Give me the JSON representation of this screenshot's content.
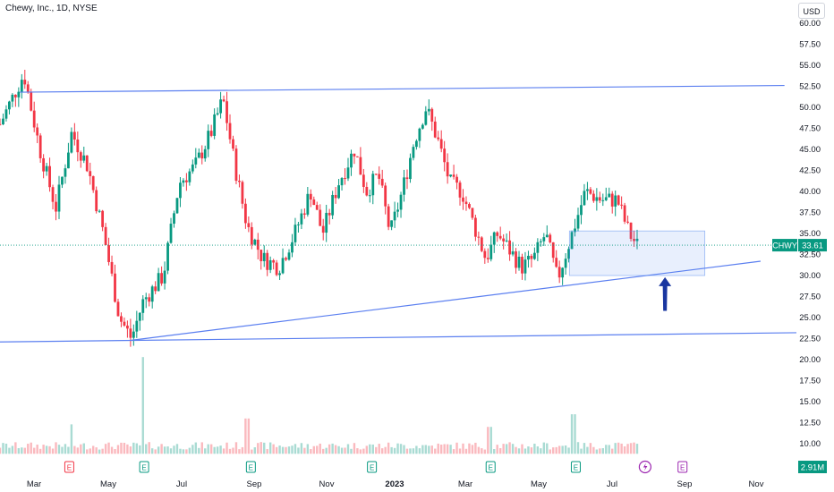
{
  "header": {
    "title": "Chewy, Inc., 1D, NYSE",
    "currency": "USD"
  },
  "chart_data": {
    "type": "candlestick",
    "symbol": "CHWY",
    "last_price": "33.61",
    "volume_label": "2.91M",
    "y_ticks": [
      "60.00",
      "57.50",
      "55.00",
      "52.50",
      "50.00",
      "47.50",
      "45.00",
      "42.50",
      "40.00",
      "37.50",
      "35.00",
      "32.50",
      "30.00",
      "27.50",
      "25.00",
      "22.50",
      "20.00",
      "17.50",
      "15.00",
      "12.50",
      "10.00"
    ],
    "x_ticks": [
      {
        "label": "Mar",
        "bold": false
      },
      {
        "label": "May",
        "bold": false
      },
      {
        "label": "Jul",
        "bold": false
      },
      {
        "label": "Sep",
        "bold": false
      },
      {
        "label": "Nov",
        "bold": false
      },
      {
        "label": "2023",
        "bold": true
      },
      {
        "label": "Mar",
        "bold": false
      },
      {
        "label": "May",
        "bold": false
      },
      {
        "label": "Jul",
        "bold": false
      },
      {
        "label": "Sep",
        "bold": false
      },
      {
        "label": "Nov",
        "bold": false
      }
    ],
    "price_path": [
      [
        0,
        48
      ],
      [
        0.03,
        54
      ],
      [
        0.05,
        45
      ],
      [
        0.07,
        38
      ],
      [
        0.09,
        47
      ],
      [
        0.11,
        43
      ],
      [
        0.13,
        35
      ],
      [
        0.15,
        25
      ],
      [
        0.165,
        22.5
      ],
      [
        0.18,
        27
      ],
      [
        0.205,
        30
      ],
      [
        0.225,
        41
      ],
      [
        0.245,
        43
      ],
      [
        0.265,
        47
      ],
      [
        0.28,
        51
      ],
      [
        0.295,
        43
      ],
      [
        0.31,
        36
      ],
      [
        0.33,
        32
      ],
      [
        0.35,
        31
      ],
      [
        0.37,
        35
      ],
      [
        0.39,
        40
      ],
      [
        0.405,
        35
      ],
      [
        0.425,
        41
      ],
      [
        0.445,
        45
      ],
      [
        0.46,
        40
      ],
      [
        0.475,
        42
      ],
      [
        0.49,
        35
      ],
      [
        0.505,
        40
      ],
      [
        0.52,
        46
      ],
      [
        0.535,
        50
      ],
      [
        0.55,
        46
      ],
      [
        0.565,
        41
      ],
      [
        0.58,
        40
      ],
      [
        0.595,
        36
      ],
      [
        0.61,
        32
      ],
      [
        0.625,
        35
      ],
      [
        0.64,
        33
      ],
      [
        0.655,
        31
      ],
      [
        0.67,
        32
      ],
      [
        0.685,
        35
      ],
      [
        0.7,
        29.5
      ],
      [
        0.715,
        34
      ],
      [
        0.735,
        40
      ],
      [
        0.755,
        39
      ],
      [
        0.775,
        39
      ],
      [
        0.79,
        35
      ],
      [
        0.8,
        33.6
      ]
    ],
    "volume_spikes": [
      [
        0.09,
        12.3
      ],
      [
        0.18,
        20.3
      ],
      [
        0.31,
        13
      ],
      [
        0.615,
        12
      ],
      [
        0.72,
        13.5
      ]
    ],
    "earnings_markers": [
      {
        "x": 0.087,
        "color": "#f23645"
      },
      {
        "x": 0.181,
        "color": "#089981"
      },
      {
        "x": 0.315,
        "color": "#089981"
      },
      {
        "x": 0.467,
        "color": "#089981"
      },
      {
        "x": 0.616,
        "color": "#089981"
      },
      {
        "x": 0.723,
        "color": "#089981"
      },
      {
        "x": 0.857,
        "color": "#9c27b0"
      }
    ],
    "dividend_marker": {
      "x": 0.81,
      "color": "#9c27b0"
    },
    "annotations": {
      "resistance_line": {
        "from": [
          0.025,
          51.8
        ],
        "to": [
          0.985,
          52.6
        ],
        "color": "#5b7ff0"
      },
      "support_line": {
        "from": [
          0.165,
          22.3
        ],
        "to": [
          0.955,
          31.7
        ],
        "color": "#5b7ff0"
      },
      "bottom_line": {
        "from": [
          0,
          22.1
        ],
        "to": [
          1.0,
          23.2
        ],
        "color": "#5b7ff0"
      },
      "box": {
        "x0": 0.715,
        "x1": 0.885,
        "y0": 30.0,
        "y1": 35.3,
        "color": "#5b8ef0"
      },
      "arrow": {
        "x": 0.835,
        "y_tail": 25.8,
        "y_head": 29.8,
        "color": "#1936a0"
      }
    },
    "colors": {
      "up": "#089981",
      "down": "#f23645",
      "line": "#5b7ff0",
      "last_price_bg": "#089981"
    }
  }
}
